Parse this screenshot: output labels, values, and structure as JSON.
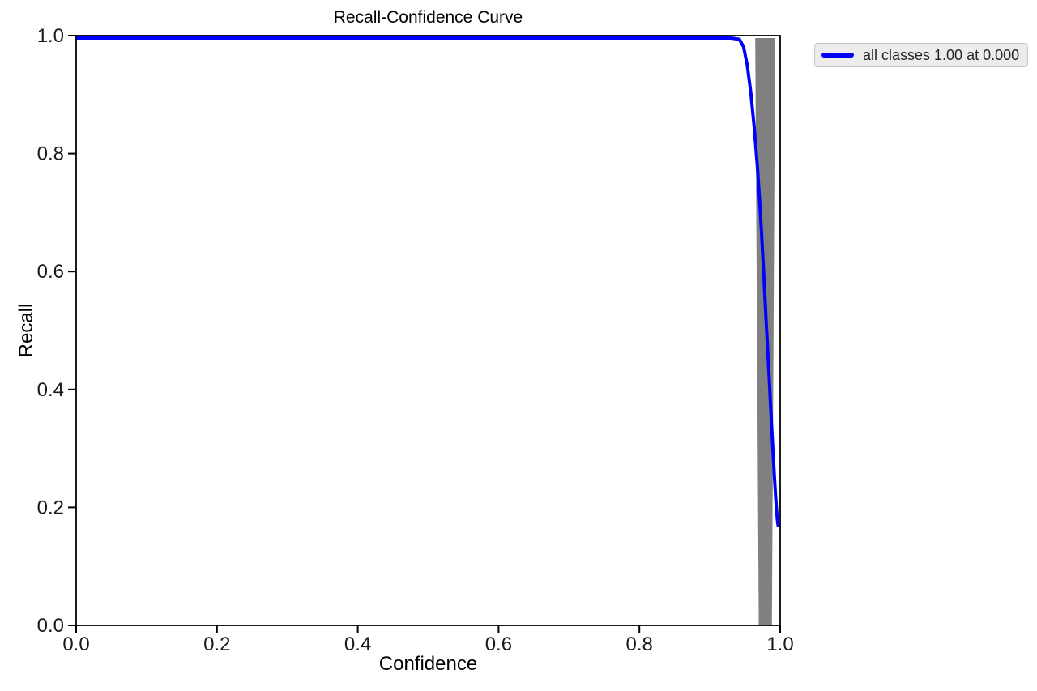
{
  "figure": {
    "background": "#ffffff"
  },
  "chart_data": {
    "type": "line",
    "title": "Recall-Confidence Curve",
    "xlabel": "Confidence",
    "ylabel": "Recall",
    "xlim": [
      0.0,
      1.0
    ],
    "ylim": [
      0.0,
      1.0
    ],
    "grid": false,
    "axis_color": "#000000",
    "tick_color": "#1a1a1a",
    "x_ticks": [
      {
        "v": 0.0,
        "label": "0.0"
      },
      {
        "v": 0.2,
        "label": "0.2"
      },
      {
        "v": 0.4,
        "label": "0.4"
      },
      {
        "v": 0.6,
        "label": "0.6"
      },
      {
        "v": 0.8,
        "label": "0.8"
      },
      {
        "v": 1.0,
        "label": "1.0"
      }
    ],
    "y_ticks": [
      {
        "v": 0.0,
        "label": "0.0"
      },
      {
        "v": 0.2,
        "label": "0.2"
      },
      {
        "v": 0.4,
        "label": "0.4"
      },
      {
        "v": 0.6,
        "label": "0.6"
      },
      {
        "v": 0.8,
        "label": "0.8"
      },
      {
        "v": 1.0,
        "label": "1.0"
      }
    ],
    "legend": {
      "position": "outside-upper-right",
      "entries": [
        {
          "label": "all classes 1.00 at 0.000",
          "color": "#0000ff"
        }
      ]
    },
    "series": [
      {
        "name": "all classes",
        "color": "#0000ff",
        "line_width": 4,
        "points": [
          [
            0.0,
            1.0
          ],
          [
            0.1,
            1.0
          ],
          [
            0.2,
            1.0
          ],
          [
            0.3,
            1.0
          ],
          [
            0.4,
            1.0
          ],
          [
            0.5,
            1.0
          ],
          [
            0.6,
            1.0
          ],
          [
            0.7,
            1.0
          ],
          [
            0.8,
            1.0
          ],
          [
            0.9,
            1.0
          ],
          [
            0.93,
            1.0
          ],
          [
            0.942,
            0.998
          ],
          [
            0.948,
            0.985
          ],
          [
            0.953,
            0.955
          ],
          [
            0.958,
            0.91
          ],
          [
            0.963,
            0.85
          ],
          [
            0.968,
            0.775
          ],
          [
            0.972,
            0.7
          ],
          [
            0.976,
            0.615
          ],
          [
            0.98,
            0.52
          ],
          [
            0.984,
            0.43
          ],
          [
            0.988,
            0.335
          ],
          [
            0.992,
            0.25
          ],
          [
            0.994,
            0.21
          ],
          [
            0.996,
            0.18
          ],
          [
            0.997,
            0.17
          ]
        ]
      }
    ],
    "class_lines": {
      "color": "#808080",
      "line_width": 2.5,
      "drops": [
        {
          "top": 0.966,
          "bottom": 0.971
        },
        {
          "top": 0.968,
          "bottom": 0.9722
        },
        {
          "top": 0.97,
          "bottom": 0.9734
        },
        {
          "top": 0.972,
          "bottom": 0.9746
        },
        {
          "top": 0.974,
          "bottom": 0.9758
        },
        {
          "top": 0.976,
          "bottom": 0.977
        },
        {
          "top": 0.978,
          "bottom": 0.9782
        },
        {
          "top": 0.98,
          "bottom": 0.9794
        },
        {
          "top": 0.982,
          "bottom": 0.9806
        },
        {
          "top": 0.9845,
          "bottom": 0.982
        },
        {
          "top": 0.987,
          "bottom": 0.9836
        },
        {
          "top": 0.9895,
          "bottom": 0.9852
        },
        {
          "top": 0.9915,
          "bottom": 0.9868
        }
      ]
    }
  }
}
